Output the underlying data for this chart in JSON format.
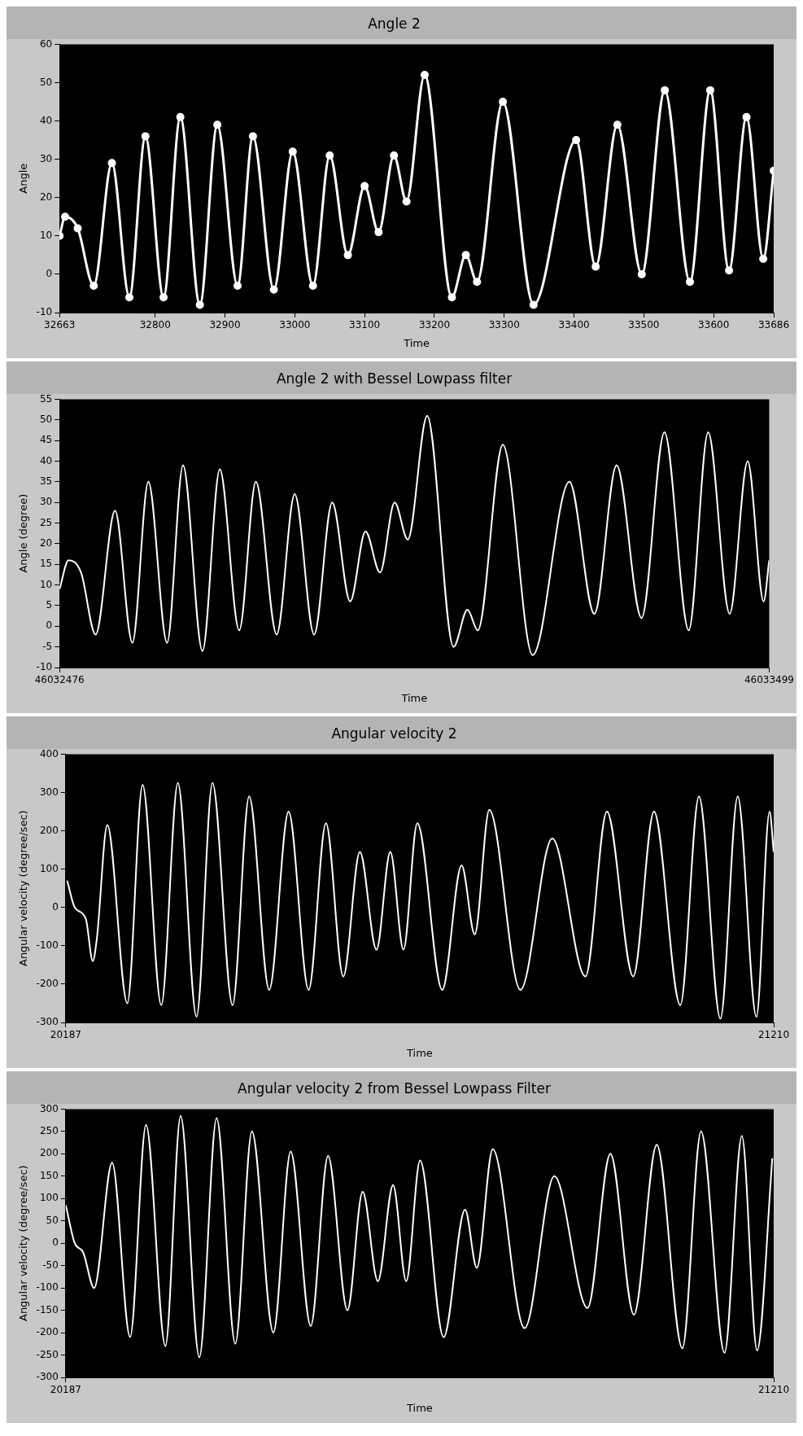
{
  "chart_data": [
    {
      "type": "line",
      "title": "Angle 2",
      "xlabel": "Time",
      "ylabel": "Angle",
      "marker": "circle",
      "grid": false,
      "legend": false,
      "xlim": [
        32663,
        33686
      ],
      "xticks": [
        32663,
        32800,
        32900,
        33000,
        33100,
        33200,
        33300,
        33400,
        33500,
        33600,
        33686
      ],
      "ylim": [
        -10,
        60
      ],
      "yticks": [
        -10,
        0,
        10,
        20,
        30,
        40,
        50,
        60
      ],
      "x": [
        32663,
        32671,
        32689,
        32712,
        32738,
        32763,
        32786,
        32812,
        32836,
        32864,
        32889,
        32918,
        32940,
        32970,
        32997,
        33026,
        33050,
        33076,
        33100,
        33120,
        33142,
        33160,
        33186,
        33225,
        33245,
        33261,
        33298,
        33342,
        33403,
        33431,
        33462,
        33497,
        33530,
        33566,
        33595,
        33622,
        33647,
        33671,
        33686
      ],
      "series": [
        {
          "color": "#ffffff",
          "values": [
            10,
            15,
            12,
            -3,
            29,
            -6,
            36,
            -6,
            41,
            -8,
            39,
            -3,
            36,
            -4,
            32,
            -3,
            31,
            5,
            23,
            11,
            31,
            19,
            52,
            -6,
            5,
            -2,
            45,
            -8,
            35,
            2,
            39,
            0,
            48,
            -2,
            48,
            1,
            41,
            4,
            27
          ]
        }
      ]
    },
    {
      "type": "line",
      "title": "Angle 2 with Bessel Lowpass filter",
      "xlabel": "Time",
      "ylabel": "Angle (degree)",
      "grid": false,
      "legend": false,
      "xlim": [
        46032476,
        46033499
      ],
      "xticks": [
        46032476,
        46033499
      ],
      "ylim": [
        -10,
        55
      ],
      "yticks": [
        -10,
        -5,
        0,
        5,
        10,
        15,
        20,
        25,
        30,
        35,
        40,
        45,
        50,
        55
      ],
      "x": [
        46032476,
        46032489,
        46032507,
        46032528,
        46032556,
        46032581,
        46032604,
        46032631,
        46032654,
        46032682,
        46032707,
        46032735,
        46032759,
        46032789,
        46032815,
        46032843,
        46032869,
        46032895,
        46032917,
        46032938,
        46032959,
        46032978,
        46033006,
        46033044,
        46033064,
        46033079,
        46033115,
        46033158,
        46033211,
        46033247,
        46033279,
        46033315,
        46033348,
        46033383,
        46033411,
        46033442,
        46033468,
        46033491,
        46033499
      ],
      "series": [
        {
          "color": "#ffffff",
          "values": [
            9,
            16,
            13,
            -2,
            28,
            -4,
            35,
            -4,
            39,
            -6,
            38,
            -1,
            35,
            -2,
            32,
            -2,
            30,
            6,
            23,
            13,
            30,
            21,
            51,
            -5,
            4,
            -1,
            44,
            -7,
            35,
            3,
            39,
            2,
            47,
            -1,
            47,
            3,
            40,
            6,
            16
          ]
        }
      ]
    },
    {
      "type": "line",
      "title": "Angular velocity 2",
      "xlabel": "Time",
      "ylabel": "Angular velocity (degree/sec)",
      "grid": false,
      "legend": false,
      "xlim": [
        20187,
        21210
      ],
      "xticks": [
        20187,
        21210
      ],
      "ylim": [
        -300,
        400
      ],
      "yticks": [
        -300,
        -200,
        -100,
        0,
        100,
        200,
        300,
        400
      ],
      "x": [
        20189,
        20200,
        20216,
        20226,
        20232,
        20247,
        20276,
        20298,
        20325,
        20349,
        20376,
        20399,
        20428,
        20452,
        20481,
        20509,
        20538,
        20563,
        20588,
        20612,
        20636,
        20656,
        20675,
        20695,
        20731,
        20759,
        20778,
        20799,
        20844,
        20890,
        20938,
        20969,
        21007,
        21037,
        21075,
        21102,
        21133,
        21158,
        21185,
        21204,
        21210
      ],
      "series": [
        {
          "color": "#ffffff",
          "values": [
            70,
            0,
            -30,
            -140,
            -80,
            215,
            -250,
            320,
            -255,
            325,
            -285,
            325,
            -255,
            290,
            -215,
            250,
            -215,
            220,
            -180,
            145,
            -110,
            145,
            -110,
            220,
            -215,
            110,
            -70,
            255,
            -215,
            180,
            -180,
            250,
            -180,
            250,
            -255,
            290,
            -290,
            290,
            -285,
            250,
            145
          ]
        }
      ]
    },
    {
      "type": "line",
      "title": "Angular velocity 2 from Bessel Lowpass Filter",
      "xlabel": "Time",
      "ylabel": "Angular velocity (degree/sec)",
      "grid": false,
      "legend": false,
      "xlim": [
        20187,
        21210
      ],
      "xticks": [
        20187,
        21210
      ],
      "ylim": [
        -300,
        300
      ],
      "yticks": [
        -300,
        -250,
        -200,
        -150,
        -100,
        -50,
        0,
        50,
        100,
        150,
        200,
        250,
        300
      ],
      "x": [
        20187,
        20200,
        20212,
        20228,
        20254,
        20280,
        20303,
        20331,
        20353,
        20380,
        20405,
        20432,
        20456,
        20487,
        20512,
        20541,
        20566,
        20594,
        20616,
        20638,
        20660,
        20679,
        20699,
        20733,
        20764,
        20781,
        20804,
        20850,
        20893,
        20941,
        20974,
        21008,
        21041,
        21078,
        21105,
        21139,
        21164,
        21186,
        21208
      ],
      "series": [
        {
          "color": "#ffffff",
          "values": [
            85,
            0,
            -20,
            -100,
            180,
            -210,
            265,
            -230,
            285,
            -255,
            280,
            -225,
            250,
            -200,
            205,
            -185,
            195,
            -150,
            115,
            -85,
            130,
            -85,
            185,
            -210,
            75,
            -55,
            210,
            -190,
            150,
            -145,
            200,
            -160,
            220,
            -235,
            250,
            -245,
            240,
            -240,
            190
          ]
        }
      ]
    }
  ]
}
